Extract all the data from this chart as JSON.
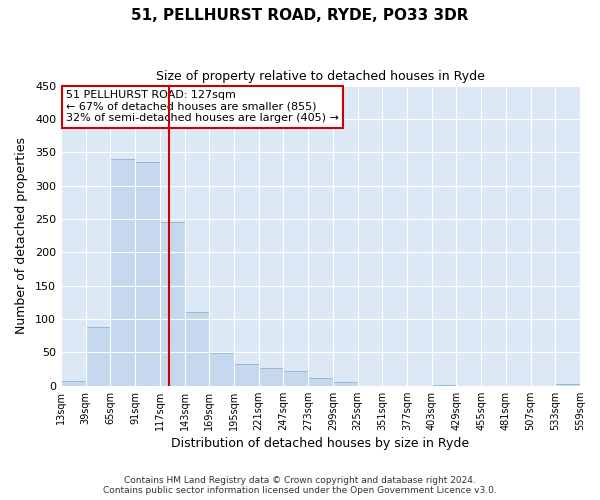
{
  "title": "51, PELLHURST ROAD, RYDE, PO33 3DR",
  "subtitle": "Size of property relative to detached houses in Ryde",
  "xlabel": "Distribution of detached houses by size in Ryde",
  "ylabel": "Number of detached properties",
  "bar_color": "#c5d8ed",
  "bar_edge_color": "#8ab4d4",
  "plot_bg_color": "#dce8f5",
  "fig_bg_color": "#ffffff",
  "grid_color": "#ffffff",
  "annotation_box_color": "#cc0000",
  "vline_color": "#cc0000",
  "annotation_line1": "51 PELLHURST ROAD: 127sqm",
  "annotation_line2": "← 67% of detached houses are smaller (855)",
  "annotation_line3": "32% of semi-detached houses are larger (405) →",
  "footer1": "Contains HM Land Registry data © Crown copyright and database right 2024.",
  "footer2": "Contains public sector information licensed under the Open Government Licence v3.0.",
  "bins_left": [
    13,
    39,
    65,
    91,
    117,
    143,
    169,
    195,
    221,
    247,
    273,
    299,
    325,
    351,
    377,
    403,
    429,
    455,
    481,
    507,
    533
  ],
  "bin_width": 26,
  "counts": [
    7,
    88,
    340,
    335,
    245,
    110,
    49,
    33,
    26,
    22,
    11,
    5,
    0,
    0,
    0,
    1,
    0,
    0,
    0,
    0,
    3
  ],
  "property_size": 127,
  "ylim": [
    0,
    450
  ],
  "yticks": [
    0,
    50,
    100,
    150,
    200,
    250,
    300,
    350,
    400,
    450
  ],
  "xlim_left": 13,
  "xlim_right": 559
}
